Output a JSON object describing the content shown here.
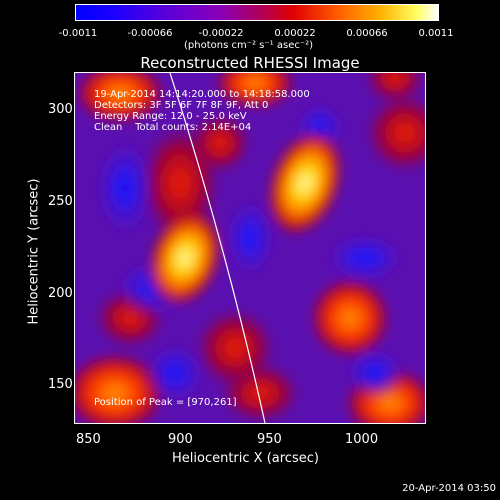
{
  "colorbar": {
    "ticks": [
      "-0.0011",
      "-0.00066",
      "-0.00022",
      "0.00022",
      "0.00066",
      "0.0011"
    ],
    "units": "(photons cm⁻² s⁻¹ asec⁻²)"
  },
  "plot": {
    "title": "Reconstructed RHESSI Image",
    "xlabel": "Heliocentric X (arcsec)",
    "ylabel": "Heliocentric Y (arcsec)",
    "xticks": [
      "850",
      "900",
      "950",
      "1000"
    ],
    "yticks": [
      "300",
      "250",
      "200",
      "150"
    ],
    "annotation": {
      "line1": "19-Apr-2014 14:14:20.000 to 14:18:58.000",
      "line2": "Detectors: 3F 5F 6F 7F 8F 9F, Att 0",
      "line3": "Energy Range: 12.0 - 25.0 keV",
      "line4": "Clean    Total counts: 2.14E+04"
    },
    "peak_label": "Position of Peak = [970,261]"
  },
  "footer": {
    "date": "20-Apr-2014 03:50"
  }
}
